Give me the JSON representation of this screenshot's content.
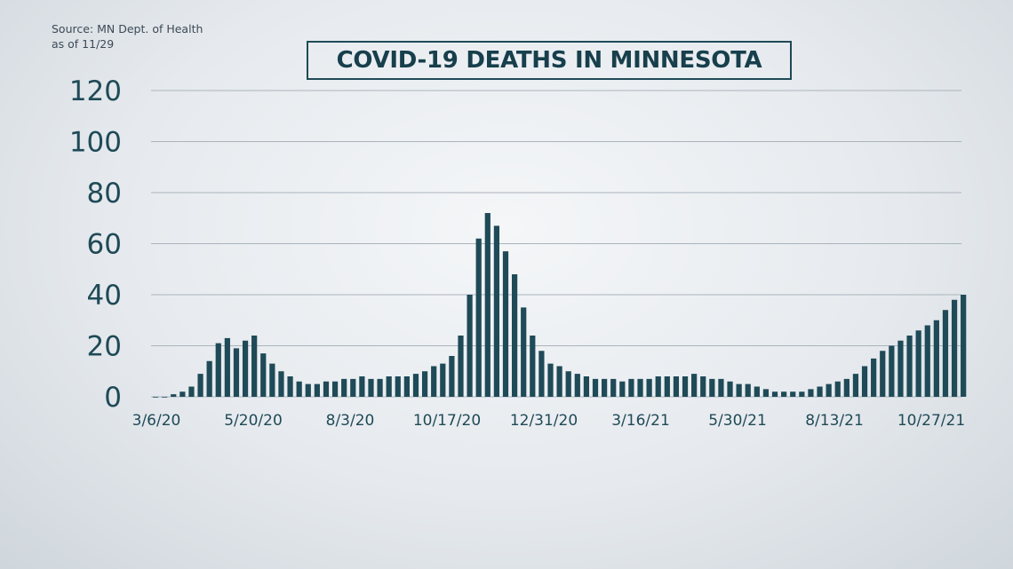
{
  "source": {
    "line1": "Source: MN Dept. of Health",
    "line2": "as of 11/29"
  },
  "colors": {
    "bar": "#1f4a57",
    "grid": "#aab4bc"
  },
  "chart_data": {
    "type": "bar",
    "title": "COVID-19 DEATHS IN MINNESOTA",
    "xlabel": "",
    "ylabel": "",
    "ylim": [
      0,
      120
    ],
    "yticks": [
      "0",
      "20",
      "40",
      "60",
      "80",
      "100",
      "120"
    ],
    "xticks": [
      "3/6/20",
      "5/20/20",
      "8/3/20",
      "10/17/20",
      "12/31/20",
      "3/16/21",
      "5/30/21",
      "8/13/21",
      "10/27/21"
    ],
    "grid": true,
    "x_start": "3/6/20",
    "x_end": "11/28/21",
    "x": [
      "2020-03-06",
      "2020-03-13",
      "2020-03-20",
      "2020-03-27",
      "2020-04-03",
      "2020-04-10",
      "2020-04-17",
      "2020-04-24",
      "2020-05-01",
      "2020-05-08",
      "2020-05-15",
      "2020-05-22",
      "2020-05-29",
      "2020-06-05",
      "2020-06-12",
      "2020-06-19",
      "2020-06-26",
      "2020-07-03",
      "2020-07-10",
      "2020-07-17",
      "2020-07-24",
      "2020-07-31",
      "2020-08-07",
      "2020-08-14",
      "2020-08-21",
      "2020-08-28",
      "2020-09-04",
      "2020-09-11",
      "2020-09-18",
      "2020-09-25",
      "2020-10-02",
      "2020-10-09",
      "2020-10-16",
      "2020-10-23",
      "2020-10-30",
      "2020-11-06",
      "2020-11-13",
      "2020-11-20",
      "2020-11-27",
      "2020-12-04",
      "2020-12-11",
      "2020-12-18",
      "2020-12-25",
      "2021-01-01",
      "2021-01-08",
      "2021-01-15",
      "2021-01-22",
      "2021-01-29",
      "2021-02-05",
      "2021-02-12",
      "2021-02-19",
      "2021-02-26",
      "2021-03-05",
      "2021-03-12",
      "2021-03-19",
      "2021-03-26",
      "2021-04-02",
      "2021-04-09",
      "2021-04-16",
      "2021-04-23",
      "2021-04-30",
      "2021-05-07",
      "2021-05-14",
      "2021-05-21",
      "2021-05-28",
      "2021-06-04",
      "2021-06-11",
      "2021-06-18",
      "2021-06-25",
      "2021-07-02",
      "2021-07-09",
      "2021-07-16",
      "2021-07-23",
      "2021-07-30",
      "2021-08-06",
      "2021-08-13",
      "2021-08-20",
      "2021-08-27",
      "2021-09-03",
      "2021-09-10",
      "2021-09-17",
      "2021-09-24",
      "2021-10-01",
      "2021-10-08",
      "2021-10-15",
      "2021-10-22",
      "2021-10-29",
      "2021-11-05",
      "2021-11-12",
      "2021-11-19",
      "2021-11-26"
    ],
    "values": [
      0,
      0,
      1,
      2,
      4,
      9,
      14,
      21,
      23,
      19,
      22,
      24,
      17,
      13,
      10,
      8,
      6,
      5,
      5,
      6,
      6,
      7,
      7,
      8,
      7,
      7,
      8,
      8,
      8,
      9,
      10,
      12,
      13,
      16,
      24,
      40,
      62,
      72,
      67,
      57,
      48,
      35,
      24,
      18,
      13,
      12,
      10,
      9,
      8,
      7,
      7,
      7,
      6,
      7,
      7,
      7,
      8,
      8,
      8,
      8,
      9,
      8,
      7,
      7,
      6,
      5,
      5,
      4,
      3,
      2,
      2,
      2,
      2,
      3,
      4,
      5,
      6,
      7,
      9,
      12,
      15,
      18,
      20,
      22,
      24,
      26,
      28,
      30,
      34,
      38,
      40
    ]
  }
}
